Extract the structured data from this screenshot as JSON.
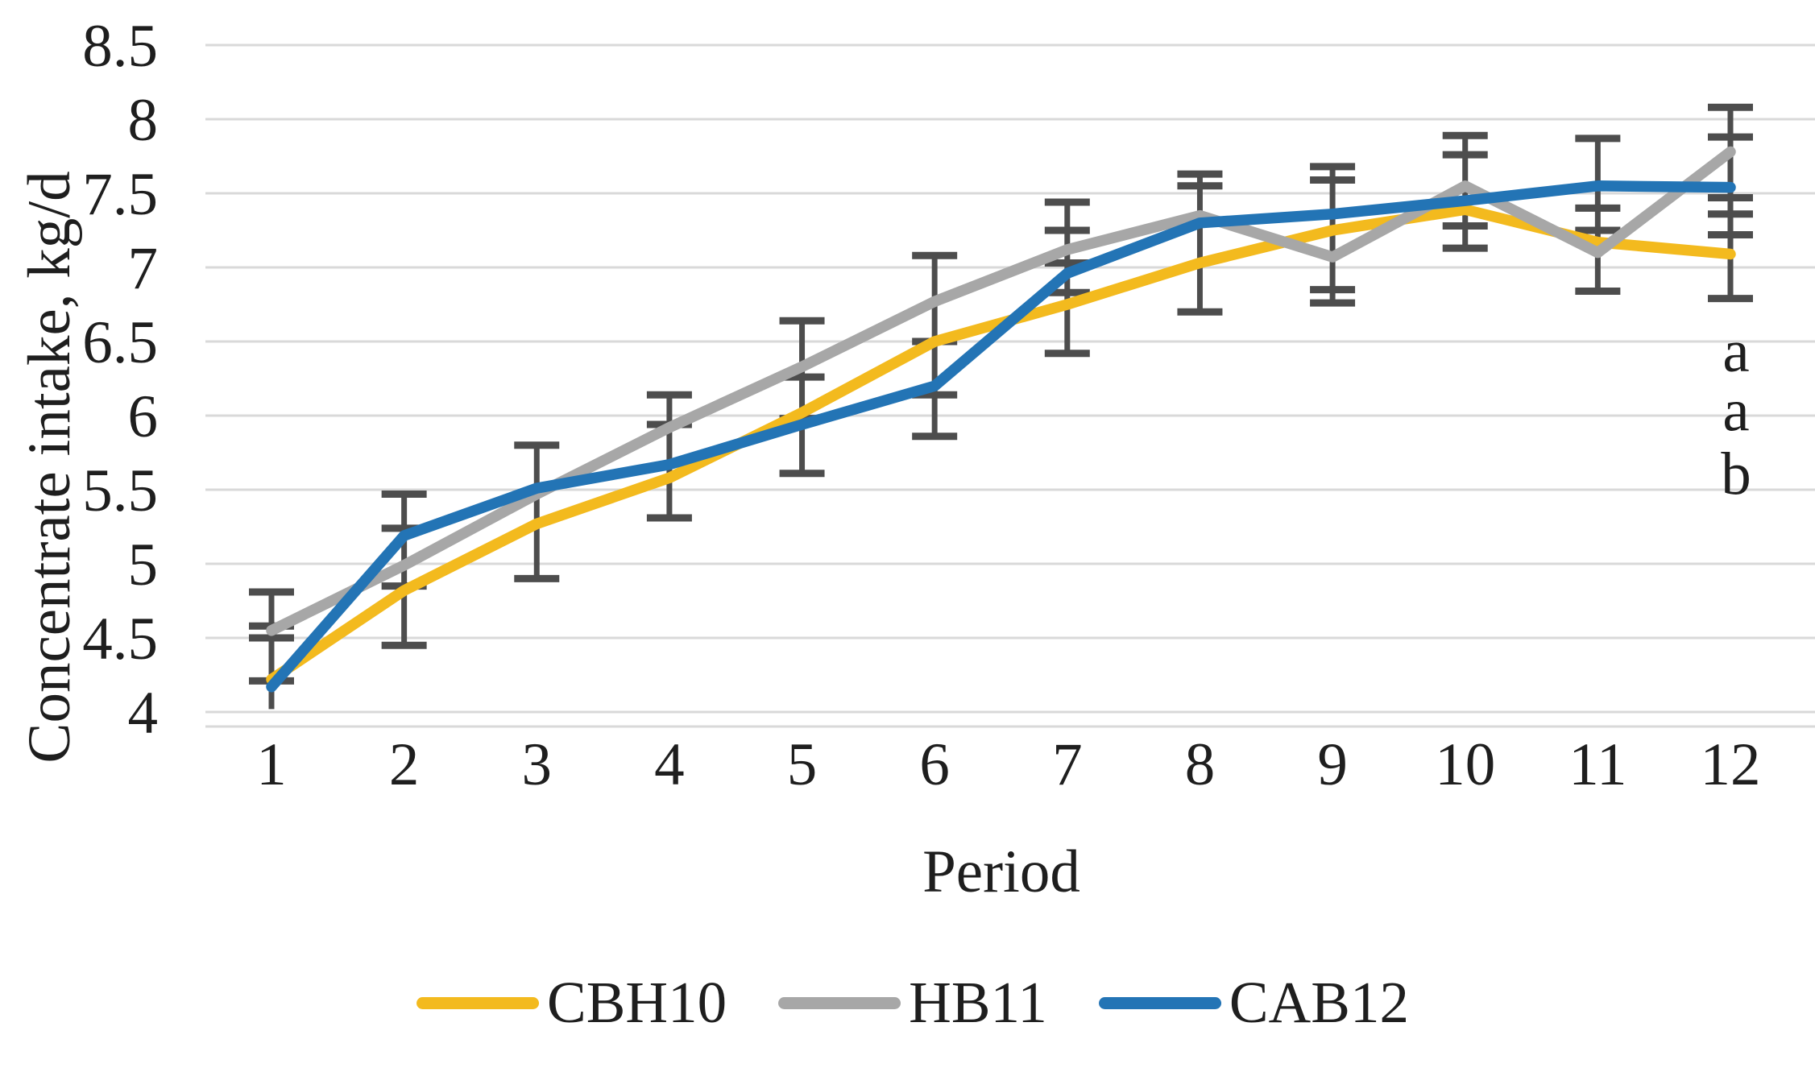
{
  "chart_data": {
    "type": "line",
    "title": "",
    "xlabel": "Period",
    "ylabel": "Concentrate intake, kg/d",
    "categories": [
      "1",
      "2",
      "3",
      "4",
      "5",
      "6",
      "7",
      "8",
      "9",
      "10",
      "11",
      "12"
    ],
    "ylim": [
      4,
      8.5
    ],
    "ytick_step": 0.5,
    "ytick_labels": [
      "8.5",
      "8",
      "7.5",
      "7",
      "6.5",
      "6",
      "5.5",
      "5",
      "4.5",
      "4"
    ],
    "grid": "horizontal",
    "legend_position": "bottom",
    "series": [
      {
        "name": "CBH10",
        "color": "#F3BA1E",
        "values": [
          4.22,
          4.82,
          5.27,
          5.58,
          6.02,
          6.5,
          6.75,
          7.03,
          7.25,
          7.39,
          7.17,
          7.09
        ]
      },
      {
        "name": "HB11",
        "color": "#A7A7A7",
        "values": [
          4.55,
          4.99,
          5.47,
          5.92,
          6.33,
          6.77,
          7.12,
          7.35,
          7.07,
          7.55,
          7.1,
          7.78
        ]
      },
      {
        "name": "CAB12",
        "color": "#2374B5",
        "values": [
          4.17,
          5.19,
          5.51,
          5.67,
          5.94,
          6.2,
          6.96,
          7.3,
          7.36,
          7.45,
          7.55,
          7.54
        ]
      }
    ],
    "error_bars": [
      {
        "period": 1,
        "lo": 4.02,
        "hi": 4.81,
        "caps": [
          4.81,
          4.58,
          4.5,
          4.21
        ]
      },
      {
        "period": 2,
        "lo": 4.45,
        "hi": 5.47,
        "caps": [
          5.47,
          5.24,
          4.85,
          4.45
        ]
      },
      {
        "period": 3,
        "lo": 4.9,
        "hi": 5.8,
        "caps": [
          5.8,
          4.9
        ]
      },
      {
        "period": 4,
        "lo": 5.31,
        "hi": 6.14,
        "caps": [
          6.14,
          5.94,
          5.31
        ]
      },
      {
        "period": 5,
        "lo": 5.61,
        "hi": 6.64,
        "caps": [
          6.64,
          6.26,
          5.98,
          5.61
        ]
      },
      {
        "period": 6,
        "lo": 5.86,
        "hi": 7.08,
        "caps": [
          7.08,
          6.5,
          6.14,
          5.86
        ]
      },
      {
        "period": 7,
        "lo": 6.42,
        "hi": 7.44,
        "caps": [
          7.44,
          7.25,
          7.03,
          6.83,
          6.42
        ]
      },
      {
        "period": 8,
        "lo": 6.7,
        "hi": 7.63,
        "caps": [
          7.63,
          7.55,
          6.7
        ]
      },
      {
        "period": 9,
        "lo": 6.76,
        "hi": 7.68,
        "caps": [
          7.68,
          7.59,
          6.85,
          6.76
        ]
      },
      {
        "period": 10,
        "lo": 7.13,
        "hi": 7.89,
        "caps": [
          7.89,
          7.76,
          7.28,
          7.13
        ]
      },
      {
        "period": 11,
        "lo": 6.84,
        "hi": 7.87,
        "caps": [
          7.87,
          7.4,
          7.25,
          6.84
        ]
      },
      {
        "period": 12,
        "lo": 6.79,
        "hi": 8.08,
        "caps": [
          8.08,
          7.88,
          7.47,
          7.36,
          7.22,
          6.79
        ]
      }
    ],
    "annotations": [
      {
        "text": "a",
        "y_value": 6.43
      },
      {
        "text": "a",
        "y_value": 6.03
      },
      {
        "text": "b",
        "y_value": 5.6
      }
    ],
    "styles": {
      "gridline_color": "#D9D9D9",
      "axisline_color": "#D9D9D9",
      "errorbar_color": "#4D4D4D",
      "text_color": "#1E1E1E"
    }
  }
}
